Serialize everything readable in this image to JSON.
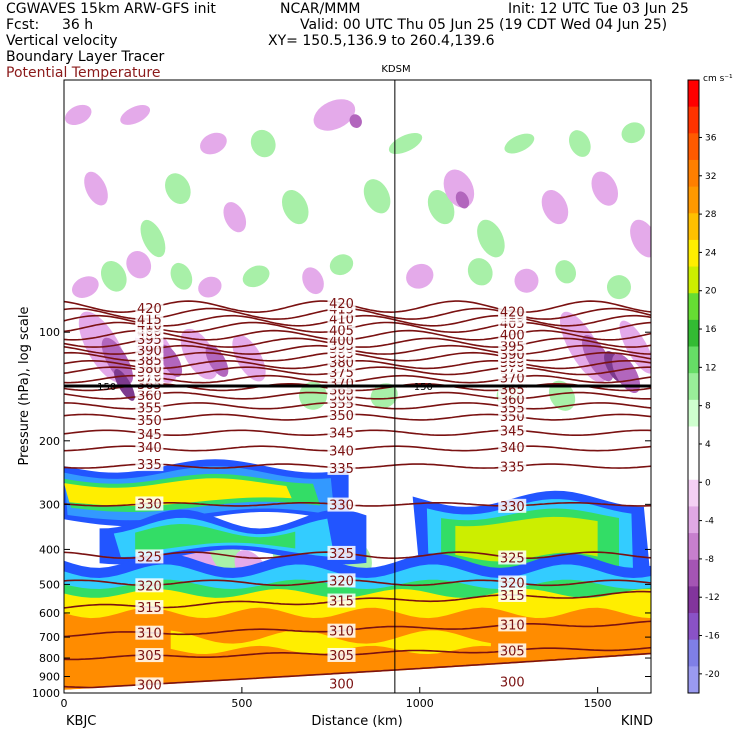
{
  "header": {
    "model": "CGWAVES 15km ARW-GFS init",
    "org": "NCAR/MMM",
    "init": "Init: 12 UTC Tue 03 Jun 25",
    "fcst_label": "Fcst:",
    "fcst_value": "36 h",
    "valid": "Valid: 00 UTC Thu 05 Jun 25 (19 CDT Wed 04 Jun 25)",
    "field1": "Vertical velocity",
    "field2": "Boundary Layer Tracer",
    "field3": "Potential Temperature",
    "xy": "XY= 150.5,136.9 to 260.4,139.6",
    "marker": "KDSM"
  },
  "chart_data": {
    "type": "heatmap",
    "title": "Vertical velocity",
    "xlabel": "Distance (km)",
    "ylabel": "Pressure (hPa), log scale",
    "xlim": [
      0,
      1650
    ],
    "ylim": [
      1000,
      20
    ],
    "y_scale": "log",
    "x_ticks": [
      0,
      500,
      1000,
      1500
    ],
    "x_tick_labels": [
      "0",
      "500",
      "1000",
      "1500"
    ],
    "y_ticks": [
      100,
      200,
      300,
      400,
      500,
      600,
      700,
      800,
      900,
      1000
    ],
    "y_tick_labels": [
      "100",
      "200",
      "300",
      "400",
      "500",
      "600",
      "700",
      "800",
      "900",
      "1000"
    ],
    "x_end_labels": [
      "KBJC",
      "KIND"
    ],
    "marker_x": 930,
    "colorbar": {
      "unit": "cm s⁻¹",
      "tick_values": [
        36,
        32,
        28,
        24,
        20,
        16,
        12,
        8,
        4,
        0,
        -4,
        -8,
        -12,
        -16,
        -20
      ],
      "tick_labels": [
        "36",
        "32",
        "28",
        "24",
        "20",
        "16",
        "12",
        "8",
        "4",
        "0",
        "-4",
        "-8",
        "-12",
        "-16",
        "-20"
      ],
      "colors": [
        "#ff0000",
        "#ff3300",
        "#ff5a00",
        "#ff7f00",
        "#ff9900",
        "#ffc000",
        "#ffee00",
        "#ccee00",
        "#66dd33",
        "#33bb33",
        "#66dd66",
        "#99ee99",
        "#cfffcf",
        "#ffffff",
        "#ffffff",
        "#f4d0f4",
        "#e0a8e4",
        "#c77fcd",
        "#a455b4",
        "#82359c",
        "#8a52c6",
        "#7f7fe6",
        "#9a9af0"
      ]
    },
    "theta_contours": [
      {
        "label": "300",
        "p": 960
      },
      {
        "label": "305",
        "p": 800
      },
      {
        "label": "310",
        "p": 690
      },
      {
        "label": "315",
        "p": 580
      },
      {
        "label": "320",
        "p": 495
      },
      {
        "label": "325",
        "p": 415
      },
      {
        "label": "330",
        "p": 300
      },
      {
        "label": "335",
        "p": 235
      },
      {
        "label": "340",
        "p": 210
      },
      {
        "label": "345",
        "p": 190
      },
      {
        "label": "350",
        "p": 172
      },
      {
        "label": "355",
        "p": 160
      },
      {
        "label": "360",
        "p": 150
      },
      {
        "label": "365",
        "p": 142
      },
      {
        "label": "370",
        "p": 135
      },
      {
        "label": "375",
        "p": 128
      },
      {
        "label": "380",
        "p": 123
      },
      {
        "label": "385",
        "p": 117
      },
      {
        "label": "390",
        "p": 112
      },
      {
        "label": "395",
        "p": 107
      },
      {
        "label": "400",
        "p": 102
      },
      {
        "label": "405",
        "p": 97
      },
      {
        "label": "410",
        "p": 93
      },
      {
        "label": "415",
        "p": 89
      },
      {
        "label": "420",
        "p": 85
      }
    ],
    "tropopause_label": "150",
    "tropopause_p": 141
  }
}
